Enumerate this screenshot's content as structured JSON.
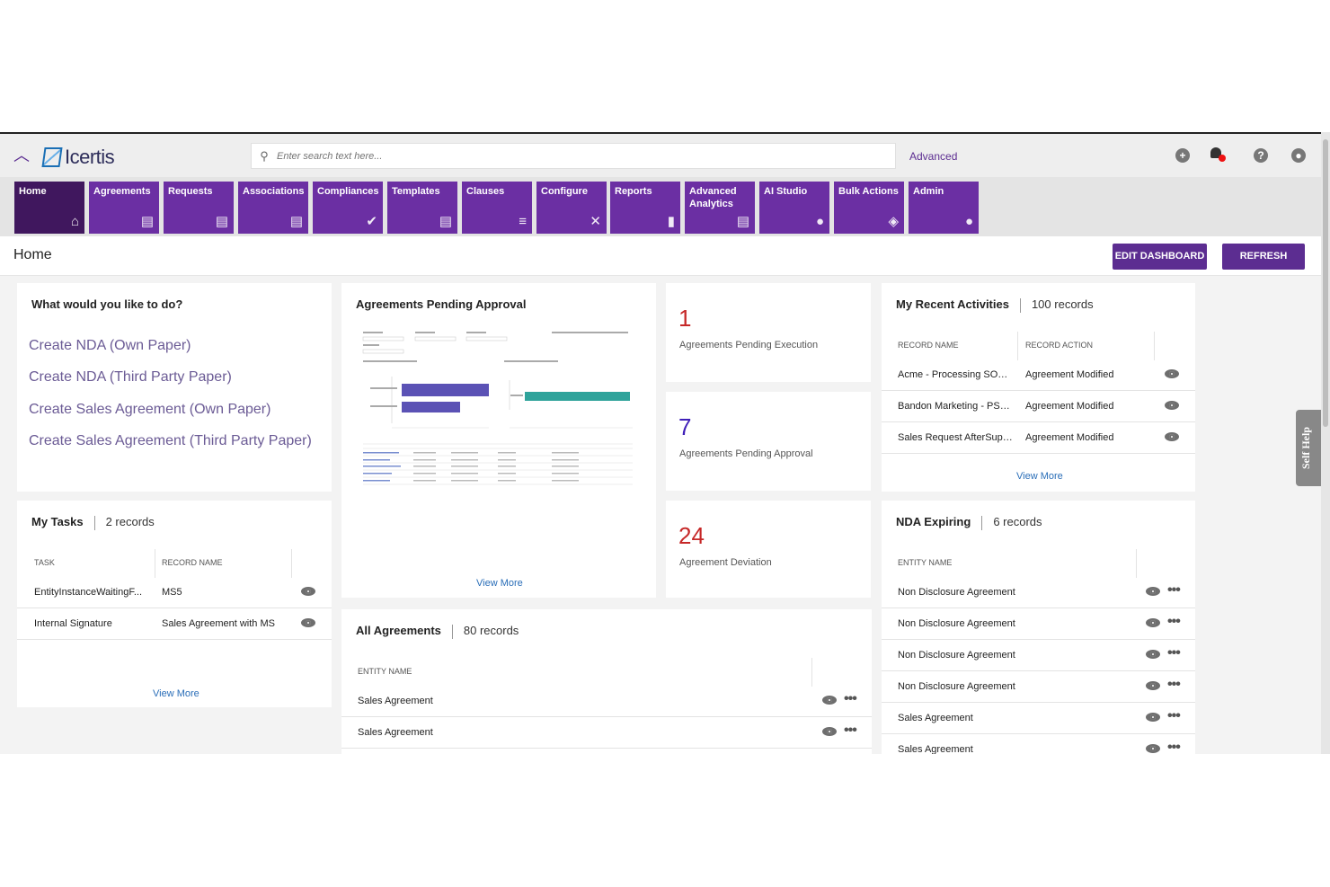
{
  "app": {
    "logo_text": "Icertis",
    "search_placeholder": "Enter search text here...",
    "advanced_label": "Advanced"
  },
  "tiles": [
    {
      "label": "Home",
      "icon": "home-icon",
      "glyph": "⌂"
    },
    {
      "label": "Agreements",
      "icon": "document-icon",
      "glyph": "▤"
    },
    {
      "label": "Requests",
      "icon": "document-plus-icon",
      "glyph": "▤"
    },
    {
      "label": "Associations",
      "icon": "document-icon",
      "glyph": "▤"
    },
    {
      "label": "Compliances",
      "icon": "check-icon",
      "glyph": "✔"
    },
    {
      "label": "Templates",
      "icon": "document-icon",
      "glyph": "▤"
    },
    {
      "label": "Clauses",
      "icon": "list-icon",
      "glyph": "≡"
    },
    {
      "label": "Configure",
      "icon": "tools-icon",
      "glyph": "✕"
    },
    {
      "label": "Reports",
      "icon": "clipboard-icon",
      "glyph": "▮"
    },
    {
      "label": "Advanced Analytics",
      "icon": "document-chart-icon",
      "glyph": "▤"
    },
    {
      "label": "AI Studio",
      "icon": "lightbulb-icon",
      "glyph": "●"
    },
    {
      "label": "Bulk Actions",
      "icon": "layers-icon",
      "glyph": "◈"
    },
    {
      "label": "Admin",
      "icon": "users-icon",
      "glyph": "●"
    }
  ],
  "page": {
    "title": "Home",
    "edit_dashboard": "EDIT DASHBOARD",
    "refresh": "REFRESH",
    "self_help": "Self Help"
  },
  "quick_actions": {
    "title": "What would you like to do?",
    "links": [
      "Create NDA (Own Paper)",
      "Create NDA (Third Party Paper)",
      "Create Sales Agreement (Own Paper)",
      "Create Sales Agreement (Third Party Paper)"
    ]
  },
  "pending_approval": {
    "title": "Agreements Pending Approval",
    "view_more": "View More"
  },
  "metrics": [
    {
      "value": "1",
      "label": "Agreements Pending Execution",
      "color": "#c62828"
    },
    {
      "value": "7",
      "label": "Agreements Pending Approval",
      "color": "#3f1fb8"
    },
    {
      "value": "24",
      "label": "Agreement Deviation",
      "color": "#c62828"
    }
  ],
  "recent_activities": {
    "title": "My Recent Activities",
    "count": "100 records",
    "columns": [
      "RECORD NAME",
      "RECORD ACTION"
    ],
    "rows": [
      [
        "Acme - Processing SOW ...",
        "Agreement Modified"
      ],
      [
        "Bandon Marketing - PSA...",
        "Agreement Modified"
      ],
      [
        "Sales Request AfterSupply",
        "Agreement Modified"
      ]
    ],
    "view_more": "View More"
  },
  "my_tasks": {
    "title": "My Tasks",
    "count": "2 records",
    "columns": [
      "TASK",
      "RECORD NAME"
    ],
    "rows": [
      [
        "EntityInstanceWaitingF...",
        "MS5"
      ],
      [
        "Internal Signature",
        "Sales Agreement with MS"
      ]
    ],
    "view_more": "View More"
  },
  "all_agreements": {
    "title": "All Agreements",
    "count": "80 records",
    "columns": [
      "ENTITY NAME"
    ],
    "rows": [
      "Sales Agreement",
      "Sales Agreement"
    ]
  },
  "nda_expiring": {
    "title": "NDA Expiring",
    "count": "6 records",
    "columns": [
      "ENTITY NAME"
    ],
    "rows": [
      "Non Disclosure Agreement",
      "Non Disclosure Agreement",
      "Non Disclosure Agreement",
      "Non Disclosure Agreement",
      "Sales Agreement",
      "Sales Agreement"
    ]
  }
}
